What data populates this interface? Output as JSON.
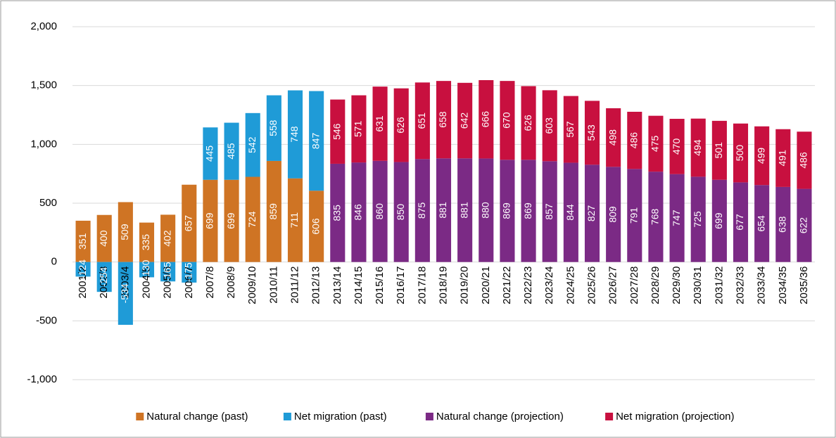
{
  "chart_data": {
    "type": "bar",
    "stacked": true,
    "categories": [
      "2001/2",
      "2002/3",
      "2003/4",
      "2004/5",
      "2005/6",
      "2006/7",
      "2007/8",
      "2008/9",
      "2009/10",
      "2010/11",
      "2011/12",
      "2012/13",
      "2013/14",
      "2014/15",
      "2015/16",
      "2016/17",
      "2017/18",
      "2018/19",
      "2019/20",
      "2020/21",
      "2021/22",
      "2022/23",
      "2023/24",
      "2024/25",
      "2025/26",
      "2026/27",
      "2027/28",
      "2028/29",
      "2029/30",
      "2030/31",
      "2031/32",
      "2032/33",
      "2033/34",
      "2034/35",
      "2035/36"
    ],
    "series": [
      {
        "name": "Natural change (past)",
        "color": "#cf7424",
        "values": [
          351,
          400,
          509,
          335,
          402,
          657,
          699,
          699,
          724,
          859,
          711,
          606,
          null,
          null,
          null,
          null,
          null,
          null,
          null,
          null,
          null,
          null,
          null,
          null,
          null,
          null,
          null,
          null,
          null,
          null,
          null,
          null,
          null,
          null,
          null
        ]
      },
      {
        "name": "Net migration (past)",
        "color": "#1f9bd7",
        "values": [
          -124,
          -254,
          -534,
          -130,
          -165,
          -175,
          445,
          485,
          542,
          558,
          748,
          847,
          null,
          null,
          null,
          null,
          null,
          null,
          null,
          null,
          null,
          null,
          null,
          null,
          null,
          null,
          null,
          null,
          null,
          null,
          null,
          null,
          null,
          null,
          null
        ]
      },
      {
        "name": "Natural change (projection)",
        "color": "#7b2a85",
        "values": [
          null,
          null,
          null,
          null,
          null,
          null,
          null,
          null,
          null,
          null,
          null,
          null,
          835,
          846,
          860,
          850,
          875,
          881,
          881,
          880,
          869,
          869,
          857,
          844,
          827,
          809,
          791,
          768,
          747,
          725,
          699,
          677,
          654,
          638,
          622
        ]
      },
      {
        "name": "Net migration (projection)",
        "color": "#c8103f",
        "values": [
          null,
          null,
          null,
          null,
          null,
          null,
          null,
          null,
          null,
          null,
          null,
          null,
          546,
          571,
          631,
          626,
          651,
          658,
          642,
          666,
          670,
          626,
          603,
          567,
          543,
          498,
          486,
          475,
          470,
          494,
          501,
          500,
          499,
          491,
          486
        ]
      }
    ],
    "ylim": [
      -1000,
      2000
    ],
    "yticks": [
      {
        "value": -1000,
        "label": "-1,000"
      },
      -500,
      0,
      500,
      {
        "value": 1000,
        "label": "1,000"
      },
      {
        "value": 1500,
        "label": "1,500"
      },
      {
        "value": 2000,
        "label": "2,000"
      }
    ],
    "grid": true
  }
}
